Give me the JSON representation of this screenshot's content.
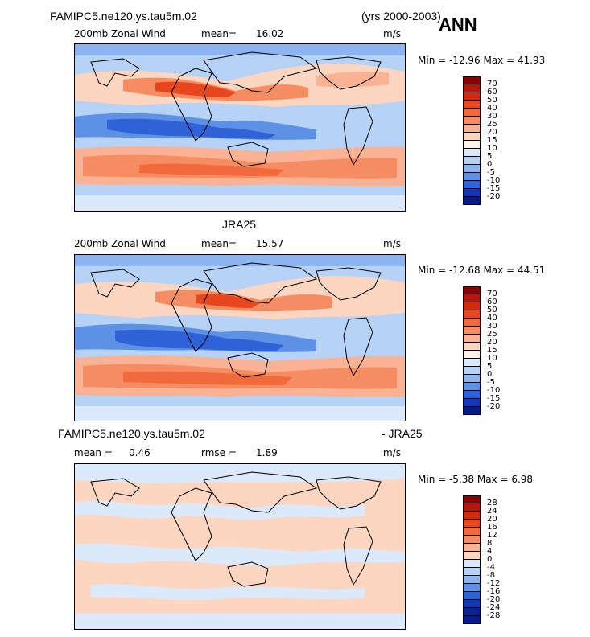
{
  "header": {
    "case": "FAMIPC5.ne120.ys.tau5m.02",
    "years": "(yrs 2000-2003)",
    "season": "ANN"
  },
  "panel1": {
    "field": "200mb Zonal Wind",
    "mean_label": "mean=",
    "mean": "16.02",
    "units": "m/s",
    "minmax": "Min = -12.96 Max =  41.93"
  },
  "panel2": {
    "title": "JRA25",
    "field": "200mb Zonal Wind",
    "mean_label": "mean=",
    "mean": "15.57",
    "units": "m/s",
    "minmax": "Min = -12.68 Max =  44.51"
  },
  "panel3": {
    "title_left": "FAMIPC5.ne120.ys.tau5m.02",
    "title_right": "- JRA25",
    "mean_label": "mean =",
    "mean": "0.46",
    "rmse_label": "rmse =",
    "rmse": "1.89",
    "units": "m/s",
    "minmax": "Min = -5.38 Max =   6.98"
  },
  "colorbar_abs": {
    "labels": [
      "70",
      "60",
      "50",
      "40",
      "30",
      "25",
      "20",
      "15",
      "10",
      "5",
      "0",
      "-5",
      "-10",
      "-15",
      "-20"
    ],
    "colors": [
      "#8b0000",
      "#b5180a",
      "#d42a0b",
      "#e8461c",
      "#f06a3c",
      "#f58c62",
      "#f9b294",
      "#fcd6c0",
      "#fff2e8",
      "#dbe9fb",
      "#b6d2f7",
      "#8cb5f0",
      "#5d91e6",
      "#2f62d6",
      "#1436b8",
      "#061a8a"
    ]
  },
  "colorbar_diff": {
    "labels": [
      "28",
      "24",
      "20",
      "16",
      "12",
      "8",
      "4",
      "0",
      "-4",
      "-8",
      "-12",
      "-16",
      "-20",
      "-24",
      "-28"
    ],
    "colors": [
      "#8b0000",
      "#b5180a",
      "#d42a0b",
      "#e8461c",
      "#f06a3c",
      "#f58c62",
      "#f9b294",
      "#fcd6c0",
      "#dbe9fb",
      "#b6d2f7",
      "#8cb5f0",
      "#5d91e6",
      "#2f62d6",
      "#1436b8",
      "#0a2294",
      "#061a8a"
    ]
  }
}
